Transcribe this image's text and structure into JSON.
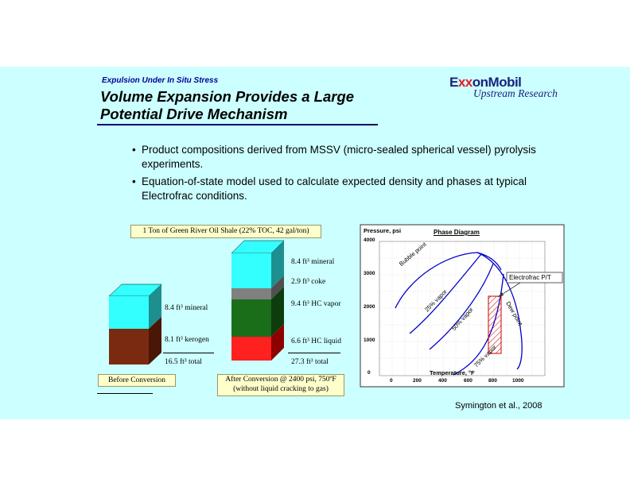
{
  "header": {
    "subtitle": "Expulsion Under In Situ Stress",
    "title_line1": "Volume Expansion Provides a Large",
    "title_line2": "Potential Drive Mechanism"
  },
  "logo": {
    "brand_prefix": "E",
    "brand_x": "xx",
    "brand_suffix": "onMobil",
    "subtext": "Upstream Research"
  },
  "bullets": [
    "Product compositions derived from MSSV (micro-sealed spherical vessel) pyrolysis experiments.",
    "Equation-of-state model used to calculate expected density and phases at typical Electrofrac conditions."
  ],
  "volume_figure": {
    "header": "1 Ton of Green River Oil Shale (22% TOC, 42 gal/ton)",
    "before": {
      "mineral": "8.4 ft³ mineral",
      "kerogen": "8.1 ft³ kerogen",
      "total": "16.5 ft³ total",
      "caption": "Before Conversion"
    },
    "after": {
      "mineral": "8.4 ft³ mineral",
      "coke": "2.9 ft³ coke",
      "hc_vapor": "9.4 ft³ HC vapor",
      "hc_liquid": "6.6 ft³ HC liquid",
      "total": "27.3 ft³ total",
      "caption_line1": "After Conversion @ 2400 psi, 750ºF",
      "caption_line2": "(without liquid cracking to gas)"
    },
    "colors": {
      "mineral": "#33ffff",
      "kerogen": "#7a2a10",
      "coke": "#808080",
      "hc_vapor": "#1a6e1a",
      "hc_liquid": "#ff2020"
    }
  },
  "phase_diagram": {
    "title": "Phase Diagram",
    "ylabel": "Pressure, psi",
    "xlabel": "Temperature, °F",
    "y_ticks": [
      "4000",
      "3000",
      "2000",
      "1000",
      "0"
    ],
    "x_ticks": [
      "0",
      "200",
      "400",
      "600",
      "800",
      "1000"
    ],
    "curve_labels": {
      "bubble": "Bubble point",
      "v25": "25% vapor",
      "v50": "50% vapor",
      "v75": "75% vapor",
      "dew": "Dew point"
    },
    "callout": "Electrofrac P/T"
  },
  "citation": "Symington et al., 2008"
}
